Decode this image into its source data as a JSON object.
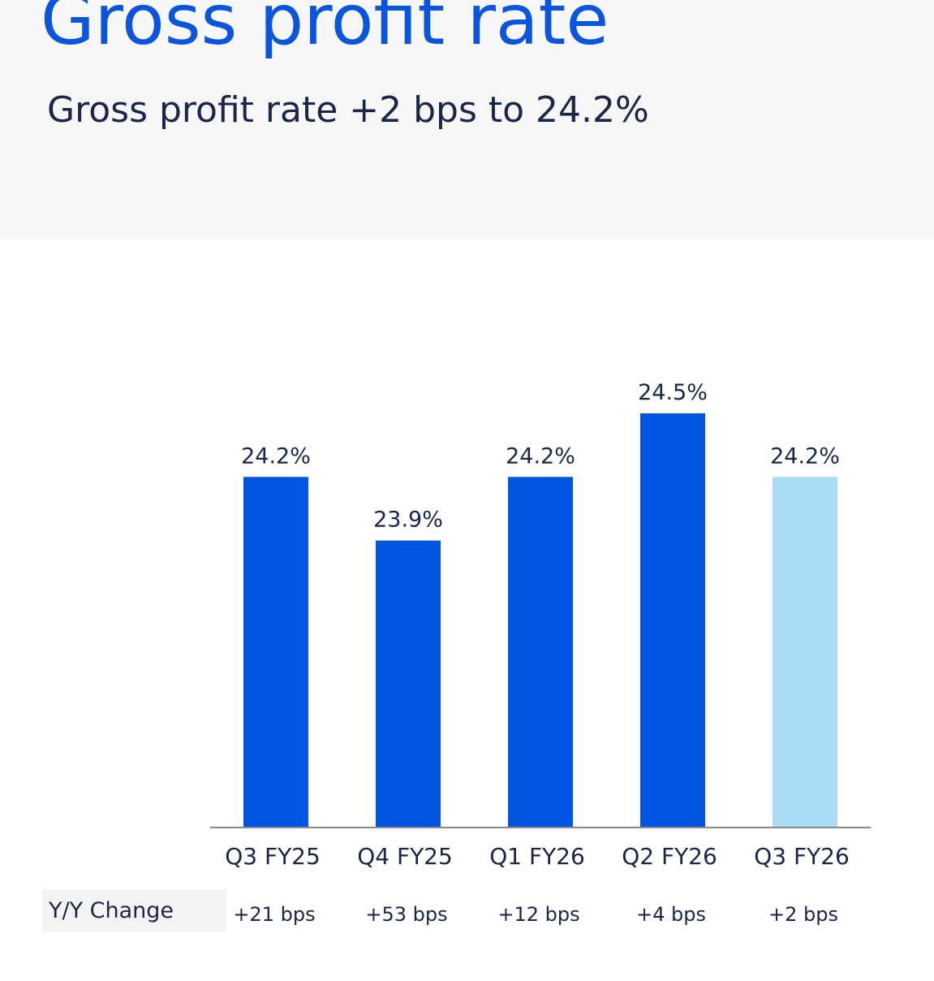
{
  "header": {
    "title": "Gross profit rate",
    "subtitle": "Gross profit rate +2 bps to 24.2%"
  },
  "colors": {
    "title": "#0a55dd",
    "bar": "#0055e0",
    "bar_highlight": "#abdcf5",
    "text": "#1c2547",
    "axis": "#8a8a8a"
  },
  "chart_data": {
    "type": "bar",
    "title": "Gross profit rate",
    "xlabel": "",
    "ylabel": "",
    "unit": "%",
    "categories": [
      "Q3 FY25",
      "Q4 FY25",
      "Q1 FY26",
      "Q2 FY26",
      "Q3 FY26"
    ],
    "values": [
      24.2,
      23.9,
      24.2,
      24.5,
      24.2
    ],
    "data_labels": [
      "24.2%",
      "23.9%",
      "24.2%",
      "24.5%",
      "24.2%"
    ],
    "highlight_index": 4,
    "ylim": [
      22.55,
      24.5
    ],
    "grid": false,
    "legend": "none"
  },
  "yoy": {
    "label": "Y/Y Change",
    "values": [
      "+21 bps",
      "+53 bps",
      "+12 bps",
      "+4 bps",
      "+2 bps"
    ]
  }
}
